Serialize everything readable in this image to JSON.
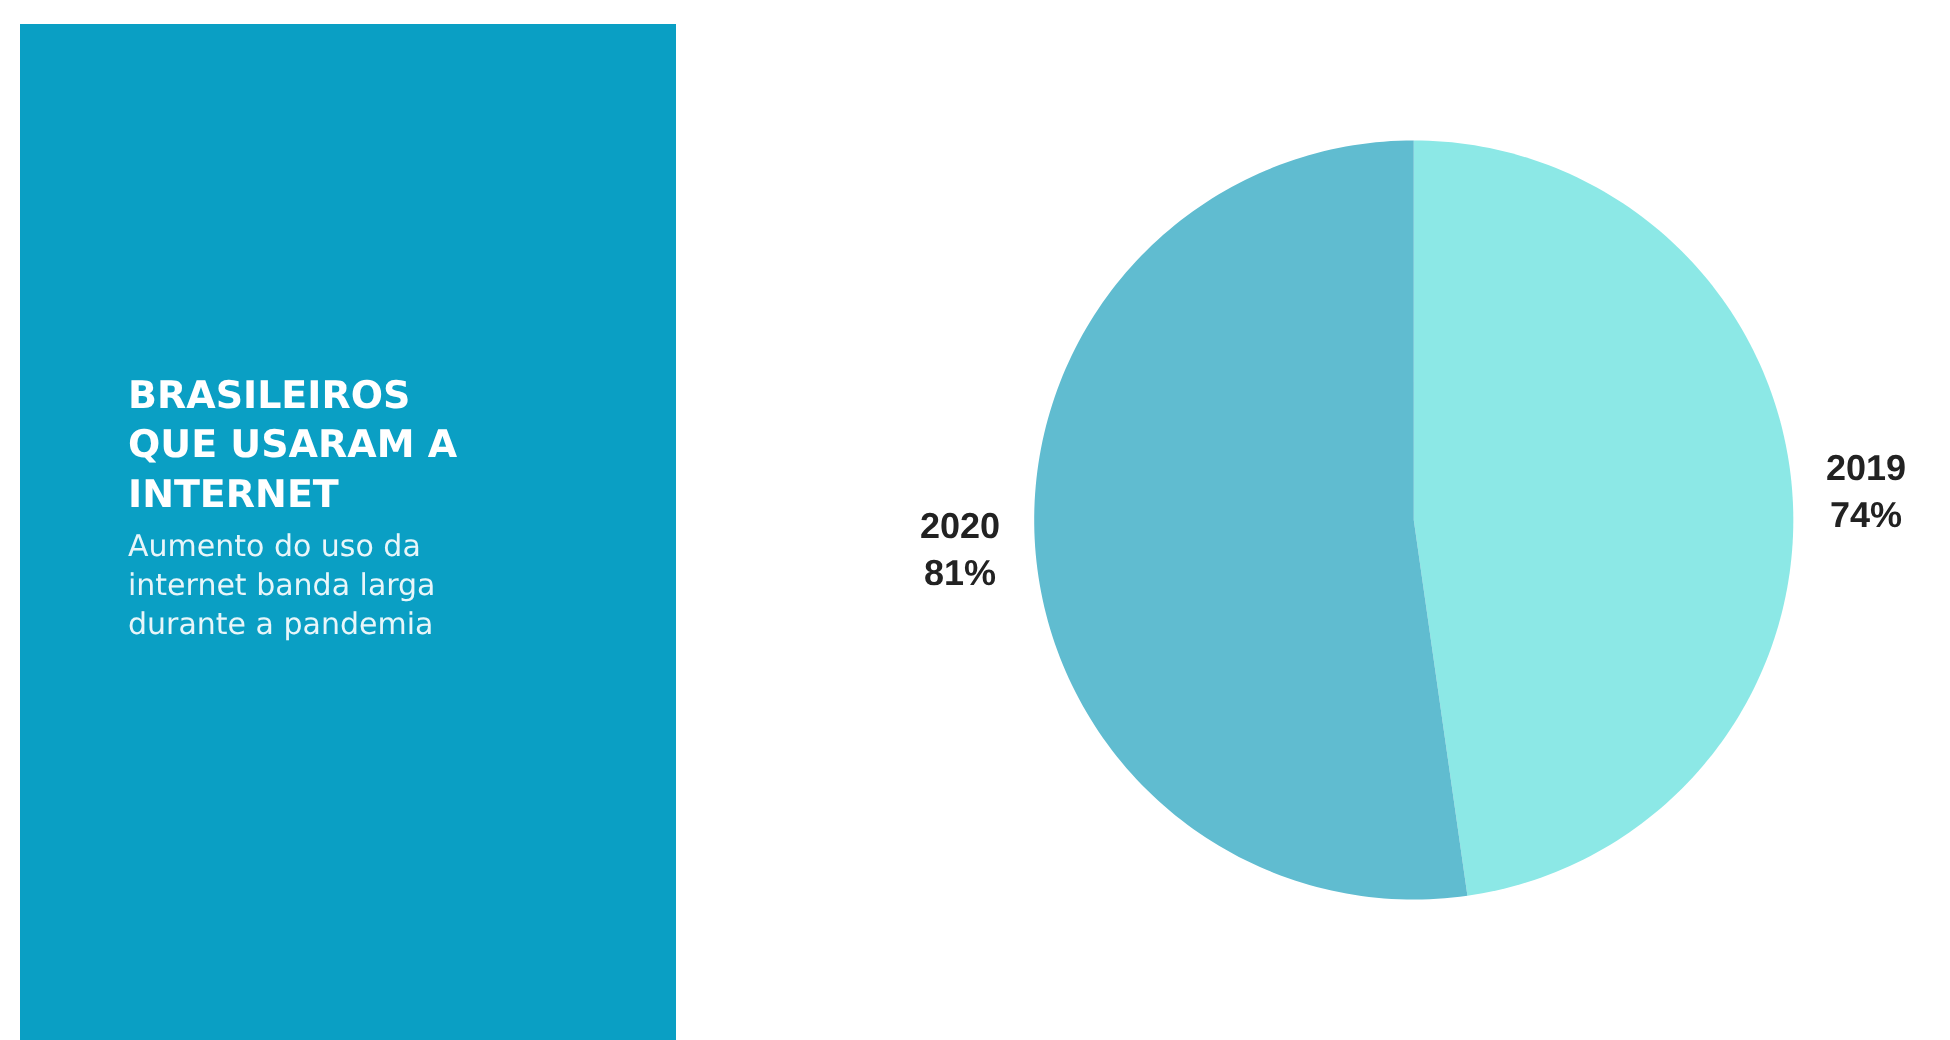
{
  "chart_data": {
    "type": "pie",
    "title": "BRASILEIROS\nQUE USARAM A\nINTERNET",
    "subtitle": "Aumento do uso da\ninternet banda larga\ndurante a pandemia",
    "categories": [
      "2019",
      "2020"
    ],
    "values": [
      74,
      81
    ],
    "value_labels": [
      "74%",
      "81%"
    ],
    "colors": [
      "#8ce8e6",
      "#60bcd0"
    ]
  }
}
